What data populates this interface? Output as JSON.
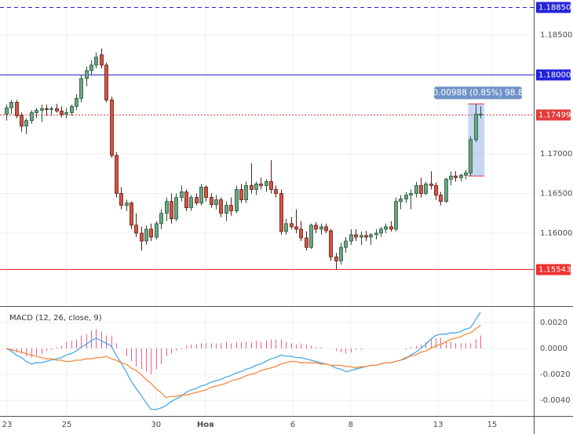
{
  "chart_data": [
    {
      "type": "candlestick",
      "up_color": "#6ba583",
      "down_color": "#d75442",
      "ohlc": [
        [
          1.175,
          1.1762,
          1.1742,
          1.1758
        ],
        [
          1.1758,
          1.1768,
          1.175,
          1.1765
        ],
        [
          1.1765,
          1.1768,
          1.1745,
          1.1748
        ],
        [
          1.1748,
          1.1752,
          1.1728,
          1.1735
        ],
        [
          1.1735,
          1.1745,
          1.1725,
          1.1742
        ],
        [
          1.1742,
          1.1755,
          1.1738,
          1.1752
        ],
        [
          1.1752,
          1.1758,
          1.1745,
          1.1755
        ],
        [
          1.1755,
          1.1762,
          1.174,
          1.1757
        ],
        [
          1.1757,
          1.1762,
          1.1748,
          1.1756
        ],
        [
          1.1756,
          1.176,
          1.1748,
          1.1757
        ],
        [
          1.1757,
          1.1763,
          1.1752,
          1.1754
        ],
        [
          1.1754,
          1.176,
          1.1746,
          1.175
        ],
        [
          1.175,
          1.1758,
          1.1745,
          1.1752
        ],
        [
          1.1752,
          1.1762,
          1.1748,
          1.176
        ],
        [
          1.176,
          1.1775,
          1.1755,
          1.177
        ],
        [
          1.177,
          1.18,
          1.1765,
          1.1795
        ],
        [
          1.1795,
          1.181,
          1.1785,
          1.1805
        ],
        [
          1.1805,
          1.1818,
          1.18,
          1.1812
        ],
        [
          1.1812,
          1.1828,
          1.1808,
          1.1822
        ],
        [
          1.1825,
          1.1833,
          1.1808,
          1.1812
        ],
        [
          1.1812,
          1.1815,
          1.1765,
          1.1768
        ],
        [
          1.1768,
          1.1772,
          1.1695,
          1.1698
        ],
        [
          1.1698,
          1.1702,
          1.1645,
          1.165
        ],
        [
          1.165,
          1.1658,
          1.163,
          1.1635
        ],
        [
          1.1635,
          1.1642,
          1.1628,
          1.1638
        ],
        [
          1.1638,
          1.164,
          1.1605,
          1.161
        ],
        [
          1.161,
          1.1625,
          1.1595,
          1.16
        ],
        [
          1.16,
          1.1608,
          1.1578,
          1.159
        ],
        [
          1.159,
          1.161,
          1.1585,
          1.1605
        ],
        [
          1.1605,
          1.1612,
          1.159,
          1.1595
        ],
        [
          1.1595,
          1.1615,
          1.1592,
          1.1612
        ],
        [
          1.1612,
          1.163,
          1.1605,
          1.1625
        ],
        [
          1.1625,
          1.1645,
          1.1615,
          1.164
        ],
        [
          1.164,
          1.165,
          1.1612,
          1.1618
        ],
        [
          1.1618,
          1.165,
          1.1615,
          1.1645
        ],
        [
          1.1645,
          1.166,
          1.164,
          1.1652
        ],
        [
          1.1652,
          1.1655,
          1.1628,
          1.1632
        ],
        [
          1.1632,
          1.1648,
          1.1628,
          1.1645
        ],
        [
          1.1645,
          1.165,
          1.1635,
          1.1638
        ],
        [
          1.1638,
          1.1662,
          1.1635,
          1.1658
        ],
        [
          1.1658,
          1.166,
          1.164,
          1.1645
        ],
        [
          1.1645,
          1.165,
          1.1632,
          1.1636
        ],
        [
          1.1636,
          1.1648,
          1.163,
          1.1642
        ],
        [
          1.1642,
          1.1645,
          1.162,
          1.1625
        ],
        [
          1.1625,
          1.164,
          1.1615,
          1.1635
        ],
        [
          1.1635,
          1.1645,
          1.1622,
          1.1628
        ],
        [
          1.1628,
          1.166,
          1.1625,
          1.1655
        ],
        [
          1.1655,
          1.1662,
          1.1638,
          1.1642
        ],
        [
          1.1642,
          1.1665,
          1.1638,
          1.166
        ],
        [
          1.166,
          1.1688,
          1.165,
          1.1655
        ],
        [
          1.1655,
          1.1665,
          1.1648,
          1.1662
        ],
        [
          1.1662,
          1.167,
          1.1655,
          1.166
        ],
        [
          1.166,
          1.1668,
          1.1652,
          1.1665
        ],
        [
          1.1665,
          1.1692,
          1.165,
          1.1655
        ],
        [
          1.1655,
          1.166,
          1.1645,
          1.165
        ],
        [
          1.165,
          1.1655,
          1.1598,
          1.1602
        ],
        [
          1.1602,
          1.1618,
          1.1598,
          1.1612
        ],
        [
          1.1612,
          1.162,
          1.1605,
          1.1608
        ],
        [
          1.1608,
          1.163,
          1.16,
          1.1605
        ],
        [
          1.1605,
          1.1615,
          1.159,
          1.1594
        ],
        [
          1.1594,
          1.1602,
          1.1578,
          1.1582
        ],
        [
          1.1582,
          1.1612,
          1.158,
          1.161
        ],
        [
          1.161,
          1.1614,
          1.16,
          1.1605
        ],
        [
          1.1605,
          1.1612,
          1.1598,
          1.1608
        ],
        [
          1.1608,
          1.1612,
          1.16,
          1.1603
        ],
        [
          1.1603,
          1.1605,
          1.1565,
          1.157
        ],
        [
          1.157,
          1.1575,
          1.1554,
          1.1565
        ],
        [
          1.1565,
          1.1588,
          1.156,
          1.1582
        ],
        [
          1.1582,
          1.1595,
          1.1575,
          1.159
        ],
        [
          1.159,
          1.1605,
          1.1585,
          1.1598
        ],
        [
          1.1598,
          1.1605,
          1.159,
          1.1595
        ],
        [
          1.1595,
          1.1602,
          1.1585,
          1.1597
        ],
        [
          1.1597,
          1.1603,
          1.159,
          1.1595
        ],
        [
          1.1595,
          1.16,
          1.1585,
          1.1598
        ],
        [
          1.1598,
          1.1605,
          1.1592,
          1.16
        ],
        [
          1.16,
          1.1608,
          1.1595,
          1.1605
        ],
        [
          1.1605,
          1.1612,
          1.16,
          1.1608
        ],
        [
          1.1608,
          1.1615,
          1.1602,
          1.1605
        ],
        [
          1.1605,
          1.1645,
          1.1602,
          1.164
        ],
        [
          1.164,
          1.1648,
          1.163,
          1.1643
        ],
        [
          1.1643,
          1.1652,
          1.1638,
          1.1648
        ],
        [
          1.1648,
          1.1655,
          1.163,
          1.165
        ],
        [
          1.165,
          1.1665,
          1.1645,
          1.166
        ],
        [
          1.166,
          1.167,
          1.1645,
          1.165
        ],
        [
          1.165,
          1.1665,
          1.1648,
          1.1662
        ],
        [
          1.1662,
          1.1678,
          1.1655,
          1.166
        ],
        [
          1.166,
          1.1664,
          1.1642,
          1.1648
        ],
        [
          1.1648,
          1.1652,
          1.1635,
          1.164
        ],
        [
          1.164,
          1.167,
          1.1638,
          1.1668
        ],
        [
          1.1668,
          1.1678,
          1.166,
          1.1672
        ],
        [
          1.1672,
          1.1678,
          1.1665,
          1.167
        ],
        [
          1.167,
          1.1675,
          1.1665,
          1.1673
        ],
        [
          1.1673,
          1.168,
          1.1668,
          1.1676
        ],
        [
          1.1676,
          1.1722,
          1.1672,
          1.1718
        ],
        [
          1.1718,
          1.1763,
          1.1715,
          1.175
        ],
        [
          1.175,
          1.176,
          1.1745,
          1.175
        ]
      ],
      "xlim": [
        -1.26,
        105.66
      ],
      "ylim": [
        1.15099,
        1.18941
      ],
      "yticks": [
        {
          "value": 1.185,
          "label": "1.18500"
        },
        {
          "value": 1.17,
          "label": "1.17000"
        },
        {
          "value": 1.165,
          "label": "1.16500"
        },
        {
          "value": 1.16,
          "label": "1.16000"
        }
      ],
      "grid": true,
      "hlines": [
        {
          "value": 1.1885,
          "label": "1.18850",
          "color": "#2323d8",
          "style": "dashed"
        },
        {
          "value": 1.18,
          "label": "1.18000",
          "color": "#2323d8",
          "style": "solid"
        },
        {
          "value": 1.17499,
          "label": "1.17499",
          "color": "#e23b3b",
          "style": "dotted"
        },
        {
          "value": 1.15543,
          "label": "1.15543",
          "color": "#f03030",
          "style": "solid"
        }
      ],
      "annotation": "0.00988 (0.85%) 98.8"
    },
    {
      "type": "macd",
      "title": "MACD (12, 26, close, 9)",
      "xlim": [
        -1.26,
        105.66
      ],
      "ylim": [
        -0.00521,
        0.00315
      ],
      "yticks": [
        {
          "value": 0.002,
          "label": "0.0020"
        },
        {
          "value": 0,
          "label": "0.0000"
        },
        {
          "value": -0.002,
          "label": "-0.0020"
        },
        {
          "value": -0.004,
          "label": "-0.0040"
        }
      ],
      "xticks": [
        {
          "value": 0.16,
          "label": "23"
        },
        {
          "value": 12.1,
          "label": "25"
        },
        {
          "value": 30.0,
          "label": "30"
        },
        {
          "value": 39.9,
          "label": "Ноя"
        },
        {
          "value": 57.4,
          "label": "6"
        },
        {
          "value": 69.0,
          "label": "8"
        },
        {
          "value": 86.5,
          "label": "13"
        },
        {
          "value": 97.3,
          "label": "15"
        }
      ],
      "grid": true,
      "series": [
        {
          "color": "#4aa8e8",
          "values": [
            0,
            -0.0002,
            -0.0005,
            -0.0007,
            -0.001,
            -0.0012,
            -0.0011,
            -0.0011,
            -0.001,
            -0.0009,
            -0.0008,
            -0.0007,
            -0.0005,
            -0.0004,
            -0.0002,
            0.0001,
            0.0003,
            0.0006,
            0.0008,
            0.0006,
            0.0004,
            0.0002,
            -0.0005,
            -0.0011,
            -0.0018,
            -0.0025,
            -0.0031,
            -0.0036,
            -0.0042,
            -0.0047,
            -0.0047,
            -0.0046,
            -0.0044,
            -0.0041,
            -0.0039,
            -0.0037,
            -0.0034,
            -0.0032,
            -0.0031,
            -0.0029,
            -0.0028,
            -0.0026,
            -0.0025,
            -0.0024,
            -0.0022,
            -0.0021,
            -0.0019,
            -0.0018,
            -0.0016,
            -0.0015,
            -0.0013,
            -0.0012,
            -0.001,
            -0.0008,
            -0.0007,
            -0.0005,
            -0.0006,
            -0.0006,
            -0.0007,
            -0.0007,
            -0.0008,
            -0.0009,
            -0.001,
            -0.0011,
            -0.0012,
            -0.0013,
            -0.0015,
            -0.0016,
            -0.0018,
            -0.0017,
            -0.0016,
            -0.0015,
            -0.0014,
            -0.0013,
            -0.0013,
            -0.0012,
            -0.0011,
            -0.0011,
            -0.001,
            -0.0009,
            -0.0008,
            -0.0005,
            -0.0003,
            0,
            0.0003,
            0.0007,
            0.001,
            0.0011,
            0.0011,
            0.0012,
            0.0012,
            0.0013,
            0.0015,
            0.0016,
            0.0022,
            0.0028
          ]
        },
        {
          "color": "#f7883a",
          "values": [
            0,
            -0.0001,
            -0.0002,
            -0.0003,
            -0.0004,
            -0.0005,
            -0.0006,
            -0.0007,
            -0.0008,
            -0.0008,
            -0.0009,
            -0.0009,
            -0.001,
            -0.001,
            -0.0009,
            -0.0009,
            -0.0008,
            -0.0008,
            -0.0007,
            -0.0007,
            -0.0006,
            -0.0008,
            -0.0009,
            -0.0011,
            -0.0012,
            -0.0015,
            -0.0017,
            -0.002,
            -0.0024,
            -0.0027,
            -0.0031,
            -0.0034,
            -0.0038,
            -0.0037,
            -0.0037,
            -0.0036,
            -0.0036,
            -0.0035,
            -0.0034,
            -0.0033,
            -0.0032,
            -0.003,
            -0.0029,
            -0.0028,
            -0.0027,
            -0.0025,
            -0.0024,
            -0.0023,
            -0.0021,
            -0.002,
            -0.0019,
            -0.0017,
            -0.0016,
            -0.0015,
            -0.0014,
            -0.0012,
            -0.0011,
            -0.001,
            -0.001,
            -0.0011,
            -0.0011,
            -0.0011,
            -0.0011,
            -0.0012,
            -0.0012,
            -0.0013,
            -0.0013,
            -0.0013,
            -0.0014,
            -0.0014,
            -0.0015,
            -0.0014,
            -0.0014,
            -0.0013,
            -0.0013,
            -0.0012,
            -0.0011,
            -0.0011,
            -0.001,
            -0.0009,
            -0.0007,
            -0.0006,
            -0.0005,
            -0.0003,
            -0.0002,
            0,
            0.0002,
            0.0003,
            0.0005,
            0.0007,
            0.0008,
            0.0009,
            0.0011,
            0.0012,
            0.0015,
            0.0018
          ]
        }
      ],
      "histogram": {
        "color": "#ec5f8e",
        "values": [
          0,
          -0.0001,
          -0.0003,
          -0.0004,
          -0.0006,
          -0.0007,
          -0.0005,
          -0.0004,
          -0.0002,
          -0.0001,
          0.0001,
          0.0002,
          0.0005,
          0.0006,
          0.0007,
          0.001,
          0.0011,
          0.0014,
          0.0015,
          0.0013,
          0.001,
          0.001,
          0.0004,
          0,
          -0.0006,
          -0.001,
          -0.0014,
          -0.0016,
          -0.0018,
          -0.002,
          -0.0016,
          -0.0012,
          -0.0006,
          -0.0004,
          -0.0002,
          -0.0001,
          0.0002,
          0.0003,
          0.0003,
          0.0004,
          0.0004,
          0.0004,
          0.0004,
          0.0004,
          0.0005,
          0.0004,
          0.0005,
          0.0005,
          0.0005,
          0.0005,
          0.0006,
          0.0005,
          0.0006,
          0.0007,
          0.0007,
          0.0007,
          0.0005,
          0.0004,
          0.0003,
          0.0004,
          0.0003,
          0.0002,
          0.0001,
          0.0001,
          0,
          0,
          -0.0002,
          -0.0003,
          -0.0004,
          -0.0003,
          -0.0001,
          -0.0001,
          0,
          0,
          0,
          0,
          0,
          0,
          0,
          0,
          -0.0001,
          0.0001,
          0.0002,
          0.0003,
          0.0005,
          0.0007,
          0.0008,
          0.0008,
          0.0006,
          0.0005,
          0.0004,
          0.0004,
          0.0004,
          0.0004,
          0.0007,
          0.001
        ]
      }
    }
  ]
}
